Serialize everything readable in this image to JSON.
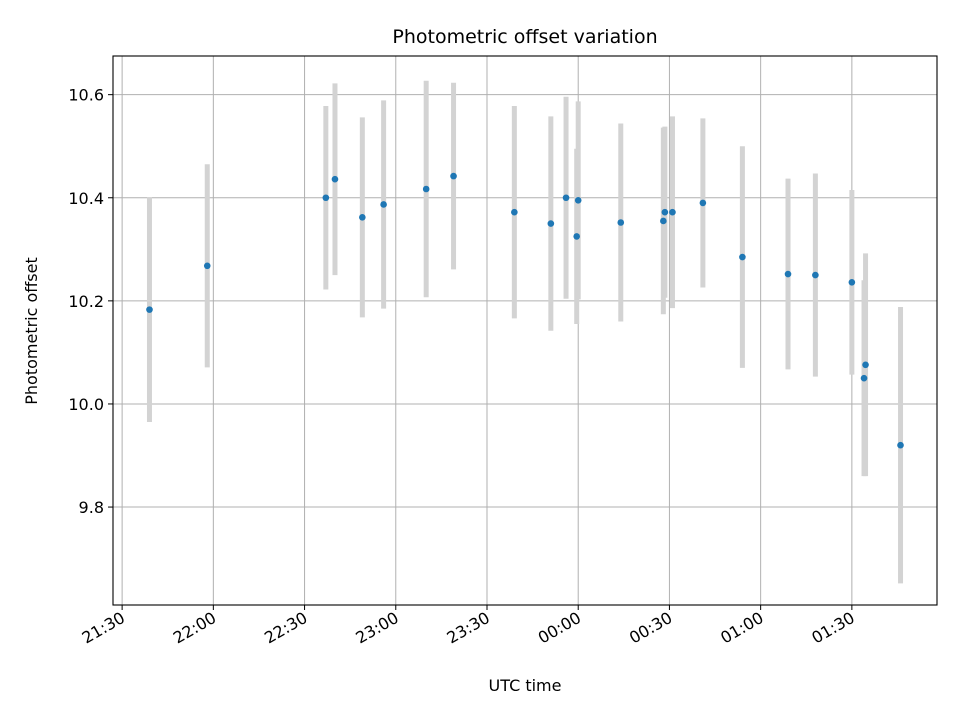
{
  "chart_data": {
    "type": "scatter",
    "title": "Photometric offset variation",
    "xlabel": "UTC time",
    "ylabel": "Photometric offset",
    "x_tick_labels": [
      "21:30",
      "22:00",
      "22:30",
      "23:00",
      "23:30",
      "00:00",
      "00:30",
      "01:00",
      "01:30"
    ],
    "y_tick_labels": [
      "9.8",
      "10.0",
      "10.2",
      "10.4",
      "10.6"
    ],
    "xlim": [
      "21:27",
      "01:58"
    ],
    "ylim": [
      9.61,
      10.675
    ],
    "grid": true,
    "point_color": "#1f77b4",
    "errorbar_color": "#d3d3d3",
    "series": [
      {
        "points": [
          {
            "x": "21:39",
            "y": 10.183,
            "yerr": 0.218
          },
          {
            "x": "21:58",
            "y": 10.268,
            "yerr": 0.197
          },
          {
            "x": "22:37",
            "y": 10.4,
            "yerr": 0.178
          },
          {
            "x": "22:40",
            "y": 10.436,
            "yerr": 0.186
          },
          {
            "x": "22:49",
            "y": 10.362,
            "yerr": 0.194
          },
          {
            "x": "22:56",
            "y": 10.387,
            "yerr": 0.202
          },
          {
            "x": "23:10",
            "y": 10.417,
            "yerr": 0.21
          },
          {
            "x": "23:19",
            "y": 10.442,
            "yerr": 0.181
          },
          {
            "x": "23:39",
            "y": 10.372,
            "yerr": 0.206
          },
          {
            "x": "23:51",
            "y": 10.35,
            "yerr": 0.208
          },
          {
            "x": "23:56",
            "y": 10.4,
            "yerr": 0.196
          },
          {
            "x": "23:59:30",
            "y": 10.325,
            "yerr": 0.17
          },
          {
            "x": "00:00",
            "y": 10.395,
            "yerr": 0.192
          },
          {
            "x": "00:14",
            "y": 10.352,
            "yerr": 0.192
          },
          {
            "x": "00:28",
            "y": 10.355,
            "yerr": 0.181
          },
          {
            "x": "00:28:30",
            "y": 10.372,
            "yerr": 0.166
          },
          {
            "x": "00:31",
            "y": 10.372,
            "yerr": 0.186
          },
          {
            "x": "00:41",
            "y": 10.39,
            "yerr": 0.164
          },
          {
            "x": "00:54",
            "y": 10.285,
            "yerr": 0.215
          },
          {
            "x": "01:09",
            "y": 10.252,
            "yerr": 0.185
          },
          {
            "x": "01:18",
            "y": 10.25,
            "yerr": 0.197
          },
          {
            "x": "01:30",
            "y": 10.236,
            "yerr": 0.179
          },
          {
            "x": "01:34",
            "y": 10.05,
            "yerr": 0.19
          },
          {
            "x": "01:34:30",
            "y": 10.076,
            "yerr": 0.216
          },
          {
            "x": "01:46",
            "y": 9.92,
            "yerr": 0.268
          }
        ]
      }
    ]
  }
}
